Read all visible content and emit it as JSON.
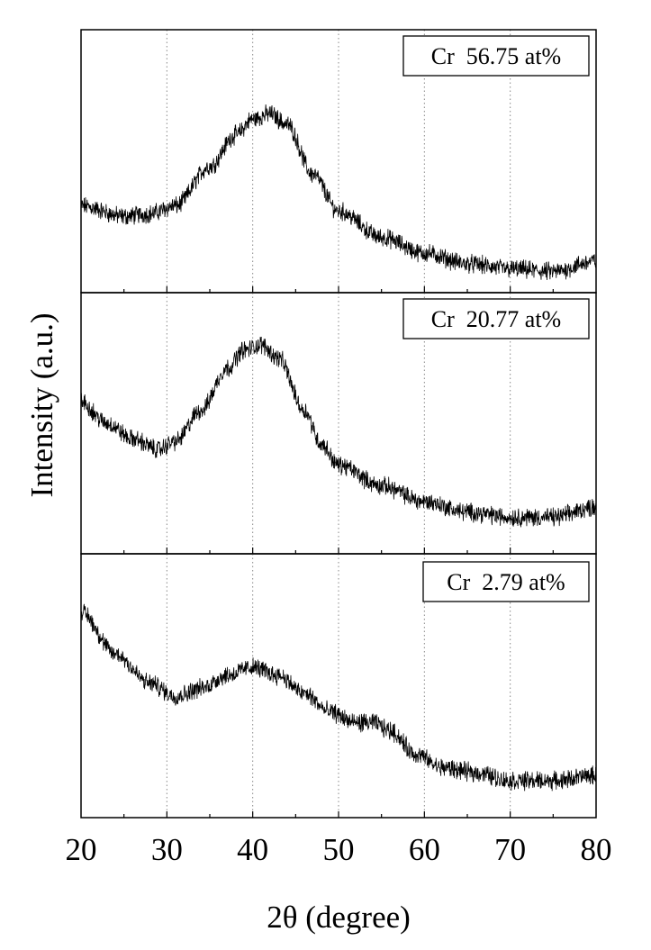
{
  "chart_data": {
    "type": "line",
    "xlabel": "2θ (degree)",
    "ylabel": "Intensity (a.u.)",
    "xlim": [
      20,
      80
    ],
    "x_ticks": [
      20,
      30,
      40,
      50,
      60,
      70,
      80
    ],
    "x_minor_step": 5,
    "grid": "vertical dotted at major x ticks",
    "line_color": "#000000",
    "panels": [
      {
        "name": "Cr  56.75 at%",
        "ylim": [
          0,
          1
        ],
        "profile": [
          [
            20,
            0.33
          ],
          [
            25,
            0.29
          ],
          [
            28,
            0.3
          ],
          [
            31,
            0.33
          ],
          [
            35,
            0.48
          ],
          [
            38,
            0.6
          ],
          [
            40,
            0.66
          ],
          [
            42,
            0.68
          ],
          [
            44,
            0.64
          ],
          [
            47,
            0.45
          ],
          [
            50,
            0.31
          ],
          [
            55,
            0.21
          ],
          [
            60,
            0.15
          ],
          [
            65,
            0.11
          ],
          [
            70,
            0.09
          ],
          [
            75,
            0.08
          ],
          [
            80,
            0.12
          ]
        ],
        "noise": 0.028
      },
      {
        "name": "Cr  20.77 at%",
        "ylim": [
          0,
          1
        ],
        "profile": [
          [
            20,
            0.58
          ],
          [
            23,
            0.5
          ],
          [
            26,
            0.44
          ],
          [
            29,
            0.4
          ],
          [
            31,
            0.43
          ],
          [
            34,
            0.55
          ],
          [
            37,
            0.71
          ],
          [
            39,
            0.78
          ],
          [
            41,
            0.8
          ],
          [
            43,
            0.75
          ],
          [
            46,
            0.55
          ],
          [
            48,
            0.42
          ],
          [
            50,
            0.34
          ],
          [
            55,
            0.26
          ],
          [
            60,
            0.2
          ],
          [
            65,
            0.16
          ],
          [
            70,
            0.14
          ],
          [
            75,
            0.14
          ],
          [
            80,
            0.18
          ]
        ],
        "noise": 0.028
      },
      {
        "name": "Cr  2.79 at%",
        "ylim": [
          0,
          1
        ],
        "profile": [
          [
            20,
            0.78
          ],
          [
            24,
            0.62
          ],
          [
            28,
            0.51
          ],
          [
            31,
            0.46
          ],
          [
            34,
            0.49
          ],
          [
            37,
            0.54
          ],
          [
            40,
            0.57
          ],
          [
            43,
            0.54
          ],
          [
            46,
            0.47
          ],
          [
            49,
            0.4
          ],
          [
            52,
            0.36
          ],
          [
            54,
            0.36
          ],
          [
            56,
            0.33
          ],
          [
            59,
            0.24
          ],
          [
            62,
            0.19
          ],
          [
            66,
            0.17
          ],
          [
            70,
            0.14
          ],
          [
            75,
            0.14
          ],
          [
            80,
            0.16
          ]
        ],
        "noise": 0.028
      }
    ]
  }
}
